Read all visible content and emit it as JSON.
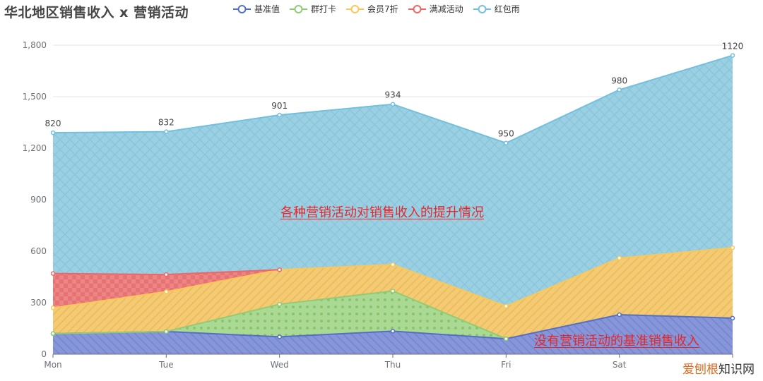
{
  "header": {
    "title": "华北地区销售收入 x 营销活动"
  },
  "legend": {
    "items": [
      {
        "label": "基准值",
        "color": "#5470c6"
      },
      {
        "label": "群打卡",
        "color": "#91cc75"
      },
      {
        "label": "会员7折",
        "color": "#fac858"
      },
      {
        "label": "满减活动",
        "color": "#ee6666"
      },
      {
        "label": "红包雨",
        "color": "#73c0de"
      }
    ]
  },
  "annotations": {
    "center": "各种营销活动对销售收入的提升情况",
    "bottom": "没有营销活动的基准销售收入"
  },
  "watermark": {
    "part1": "爱刨根",
    "part2": "知识网"
  },
  "chart_data": {
    "type": "area",
    "stacked": true,
    "title": "华北地区销售收入 x 营销活动",
    "xlabel": "",
    "ylabel": "",
    "categories": [
      "Mon",
      "Tue",
      "Wed",
      "Thu",
      "Fri",
      "Sat",
      "Sun"
    ],
    "x_tick_labels": [
      "Mon",
      "Tue",
      "Wed",
      "Thu",
      "Fri",
      "Sat",
      ""
    ],
    "ylim": [
      0,
      1800
    ],
    "y_ticks": [
      0,
      300,
      600,
      900,
      1200,
      1500,
      1800
    ],
    "y_tick_labels": [
      "0",
      "300",
      "600",
      "900",
      "1,200",
      "1,500",
      "1,800"
    ],
    "grid": "horizontal",
    "legend_position": "top",
    "series": [
      {
        "name": "基准值",
        "color": "#5470c6",
        "values": [
          120,
          132,
          101,
          134,
          90,
          230,
          210
        ]
      },
      {
        "name": "群打卡",
        "color": "#91cc75",
        "values": [
          0,
          0,
          190,
          234,
          0,
          null,
          null
        ]
      },
      {
        "name": "会员7折",
        "color": "#fac858",
        "values": [
          150,
          232,
          201,
          154,
          190,
          330,
          410
        ]
      },
      {
        "name": "满减活动",
        "color": "#ee6666",
        "values": [
          200,
          100,
          0,
          null,
          null,
          null,
          null
        ]
      },
      {
        "name": "红包雨",
        "color": "#73c0de",
        "values": [
          820,
          832,
          901,
          934,
          950,
          980,
          1120
        ],
        "labels_shown": true
      }
    ],
    "top_labels": [
      "820",
      "832",
      "901",
      "934",
      "950",
      "980",
      "1120"
    ],
    "annotations": [
      "各种营销活动对销售收入的提升情况",
      "没有营销活动的基准销售收入"
    ]
  }
}
